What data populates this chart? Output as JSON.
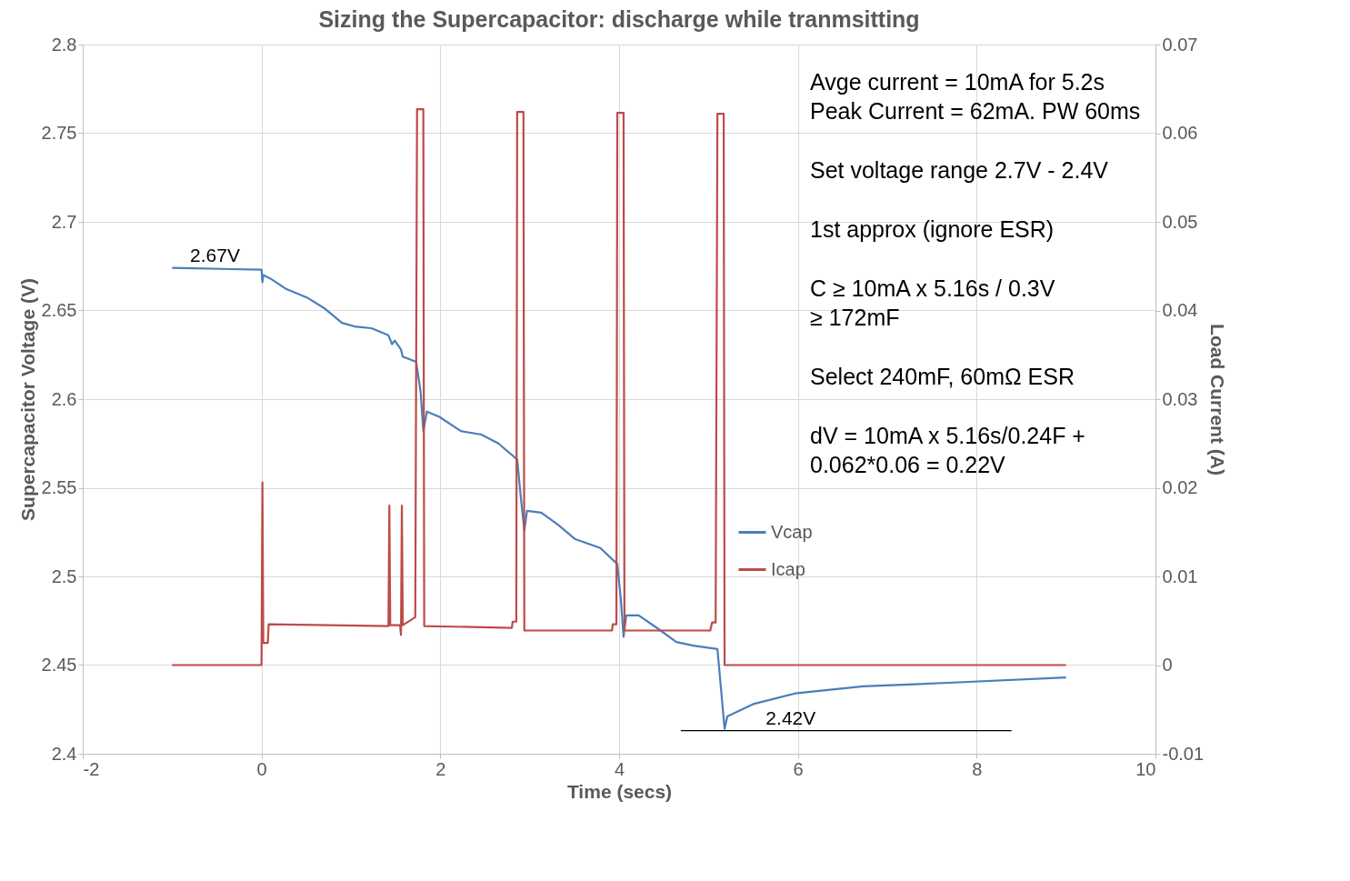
{
  "chart_data": {
    "type": "line",
    "title": "Sizing the Supercapacitor: discharge while tranmsitting",
    "xlabel": "Time (secs)",
    "ylabel": "Supercapacitor Voltage (V)",
    "y2label": "Load Current (A)",
    "xlim": [
      -2,
      10
    ],
    "xticks": [
      -2,
      0,
      2,
      4,
      6,
      8,
      10
    ],
    "ylim": [
      2.4,
      2.8
    ],
    "yticks": [
      2.4,
      2.45,
      2.5,
      2.55,
      2.6,
      2.65,
      2.7,
      2.75,
      2.8
    ],
    "y2lim": [
      -0.01,
      0.07
    ],
    "y2ticks": [
      -0.01,
      0,
      0.01,
      0.02,
      0.03,
      0.04,
      0.05,
      0.06,
      0.07
    ],
    "grid": true,
    "legend": "bottom right",
    "line_style": "solid",
    "marker": "none",
    "series": [
      {
        "name": "Vcap",
        "color": "#4a7ebb",
        "x": [
          -1,
          0,
          0.01,
          0.02,
          0.1,
          0.28,
          0.52,
          0.71,
          0.9,
          1.04,
          1.23,
          1.42,
          1.46,
          1.49,
          1.56,
          1.58,
          1.73,
          1.78,
          1.81,
          1.85,
          1.99,
          2.23,
          2.46,
          2.65,
          2.86,
          2.9,
          2.94,
          2.97,
          3.13,
          3.32,
          3.51,
          3.79,
          3.98,
          4.02,
          4.05,
          4.08,
          4.22,
          4.45,
          4.64,
          4.83,
          5.1,
          5.12,
          5.18,
          5.21,
          5.5,
          5.97,
          6.73,
          7.68,
          9.0
        ],
        "values": [
          2.674,
          2.673,
          2.666,
          2.67,
          2.668,
          2.662,
          2.657,
          2.651,
          2.643,
          2.641,
          2.64,
          2.636,
          2.631,
          2.633,
          2.628,
          2.624,
          2.621,
          2.604,
          2.582,
          2.593,
          2.59,
          2.582,
          2.58,
          2.575,
          2.566,
          2.545,
          2.526,
          2.537,
          2.536,
          2.529,
          2.521,
          2.516,
          2.507,
          2.487,
          2.466,
          2.478,
          2.478,
          2.47,
          2.463,
          2.461,
          2.459,
          2.448,
          2.414,
          2.421,
          2.428,
          2.434,
          2.438,
          2.44,
          2.443
        ]
      },
      {
        "name": "Icap",
        "color": "#be4b48",
        "axis": "y2",
        "x": [
          -1,
          0,
          0.01,
          0.02,
          0.07,
          0.08,
          1.42,
          1.43,
          1.44,
          1.55,
          1.56,
          1.57,
          1.58,
          1.72,
          1.74,
          1.81,
          1.82,
          2.8,
          2.81,
          2.85,
          2.86,
          2.93,
          2.94,
          3.92,
          3.93,
          3.97,
          3.98,
          4.05,
          4.06,
          5.02,
          5.04,
          5.08,
          5.1,
          5.17,
          5.18,
          9.0
        ],
        "values": [
          0,
          0,
          0.0206,
          0.0025,
          0.0025,
          0.0046,
          0.0044,
          0.018,
          0.0045,
          0.0045,
          0.0034,
          0.018,
          0.0045,
          0.0054,
          0.0627,
          0.0627,
          0.0044,
          0.0042,
          0.0049,
          0.0049,
          0.0624,
          0.0624,
          0.0039,
          0.0039,
          0.0046,
          0.0046,
          0.0623,
          0.0623,
          0.0039,
          0.0039,
          0.0048,
          0.0048,
          0.0622,
          0.0622,
          0,
          0
        ]
      },
      {
        "color": "#000000",
        "x": [
          4.69,
          8.39
        ],
        "values": [
          2.413,
          2.413
        ]
      }
    ],
    "annotations": [
      "Avge current = 10mA for 5.2s\nPeak Current = 62mA. PW 60ms",
      "Set voltage range 2.7V - 2.4V",
      "1st approx (ignore ESR)",
      "C ≥ 10mA x 5.16s / 0.3V\n    ≥ 172mF",
      "Select 240mF, 60mΩ ESR",
      "dV = 10mA x 5.16s/0.24F +\n0.062*0.06 = 0.22V",
      {
        "text": "2.67V",
        "x": -0.52,
        "y": 2.674
      },
      {
        "text": "2.42V",
        "x": 5.92,
        "y": 2.413
      }
    ]
  }
}
